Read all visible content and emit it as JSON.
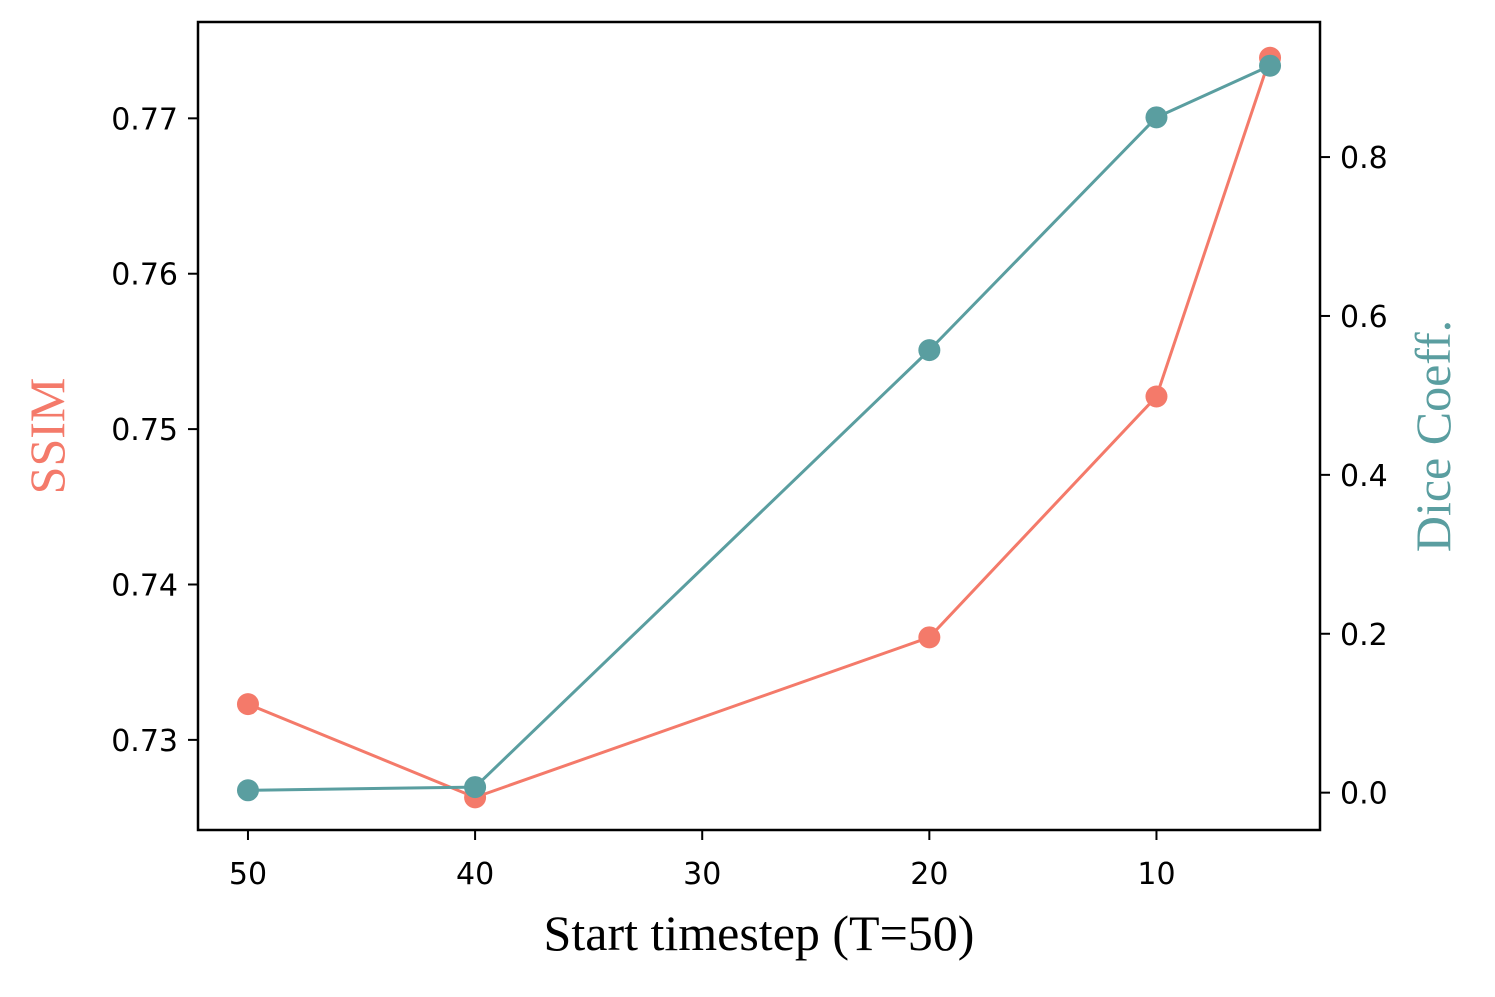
{
  "chart_data": {
    "type": "line",
    "x": [
      50,
      40,
      20,
      10,
      5
    ],
    "xlabel": "Start timestep (T=50)",
    "xlim": [
      52.2,
      2.8
    ],
    "xticks": [
      50,
      40,
      30,
      20,
      10
    ],
    "x_inverted": true,
    "y_left": {
      "label": "SSIM",
      "lim": [
        0.7242,
        0.7762
      ],
      "ticks": [
        0.73,
        0.74,
        0.75,
        0.76,
        0.77
      ],
      "tick_labels": [
        "0.73",
        "0.74",
        "0.75",
        "0.76",
        "0.77"
      ],
      "color": "#f47a6a"
    },
    "y_right": {
      "label": "Dice Coeff.",
      "lim": [
        -0.047,
        0.97
      ],
      "ticks": [
        0.0,
        0.2,
        0.4,
        0.6,
        0.8
      ],
      "tick_labels": [
        "0.0",
        "0.2",
        "0.4",
        "0.6",
        "0.8"
      ],
      "color": "#5a9ea0"
    },
    "series": [
      {
        "axis": "left",
        "color": "#f47a6a",
        "values": [
          0.7323,
          0.7263,
          0.7366,
          0.7521,
          0.7739
        ]
      },
      {
        "axis": "right",
        "color": "#5a9ea0",
        "values": [
          0.003,
          0.007,
          0.557,
          0.85,
          0.915
        ]
      }
    ],
    "grid": false,
    "legend": "none"
  }
}
